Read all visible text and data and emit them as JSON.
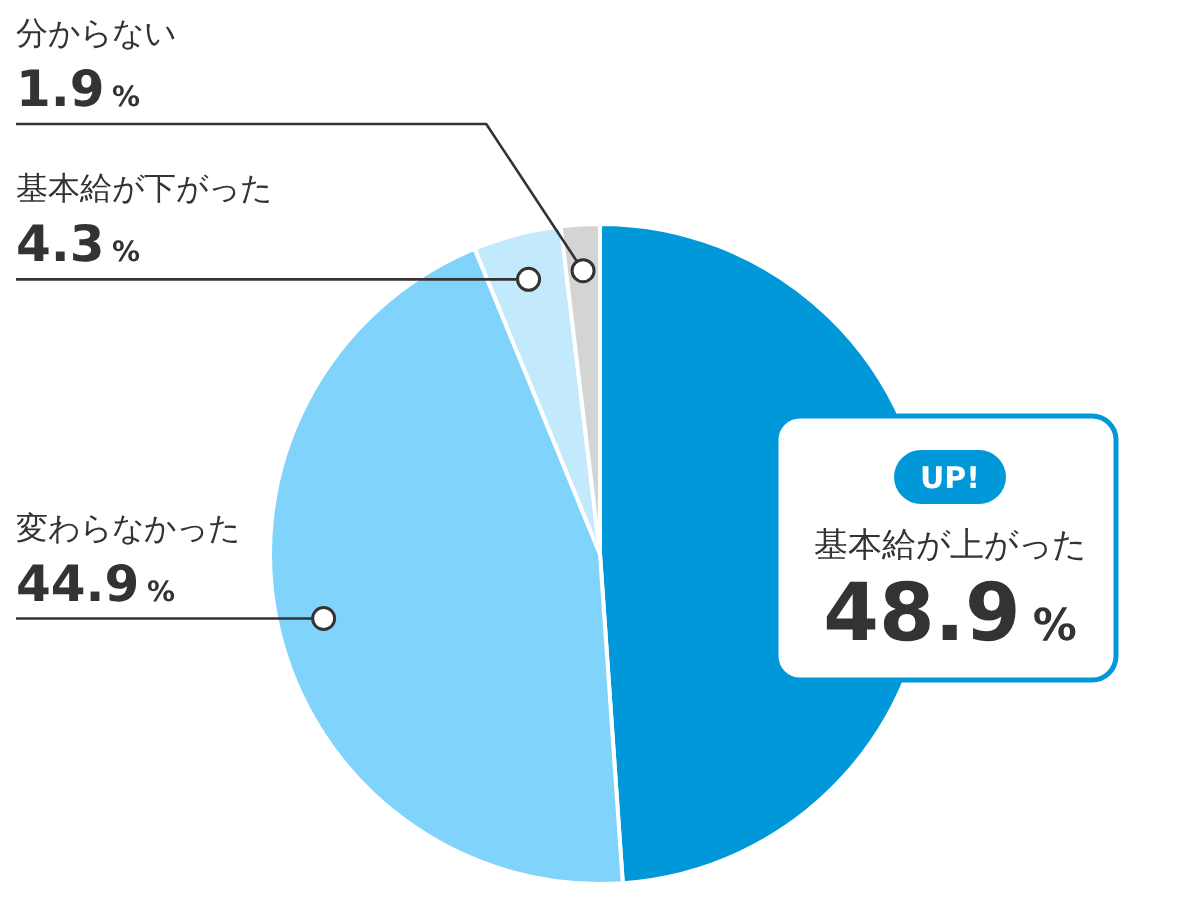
{
  "chart_data": {
    "type": "pie",
    "categories": [
      "基本給が上がった",
      "変わらなかった",
      "基本給が下がった",
      "分からない"
    ],
    "values": [
      48.9,
      44.9,
      4.3,
      1.9
    ],
    "colors": [
      "#0098d8",
      "#80d3fa",
      "#c2e9fc",
      "#d4d4d4"
    ],
    "value_labels": [
      "48.9%",
      "44.9%",
      "4.3%",
      "1.9%"
    ],
    "annotations": [
      "UP!"
    ]
  }
}
